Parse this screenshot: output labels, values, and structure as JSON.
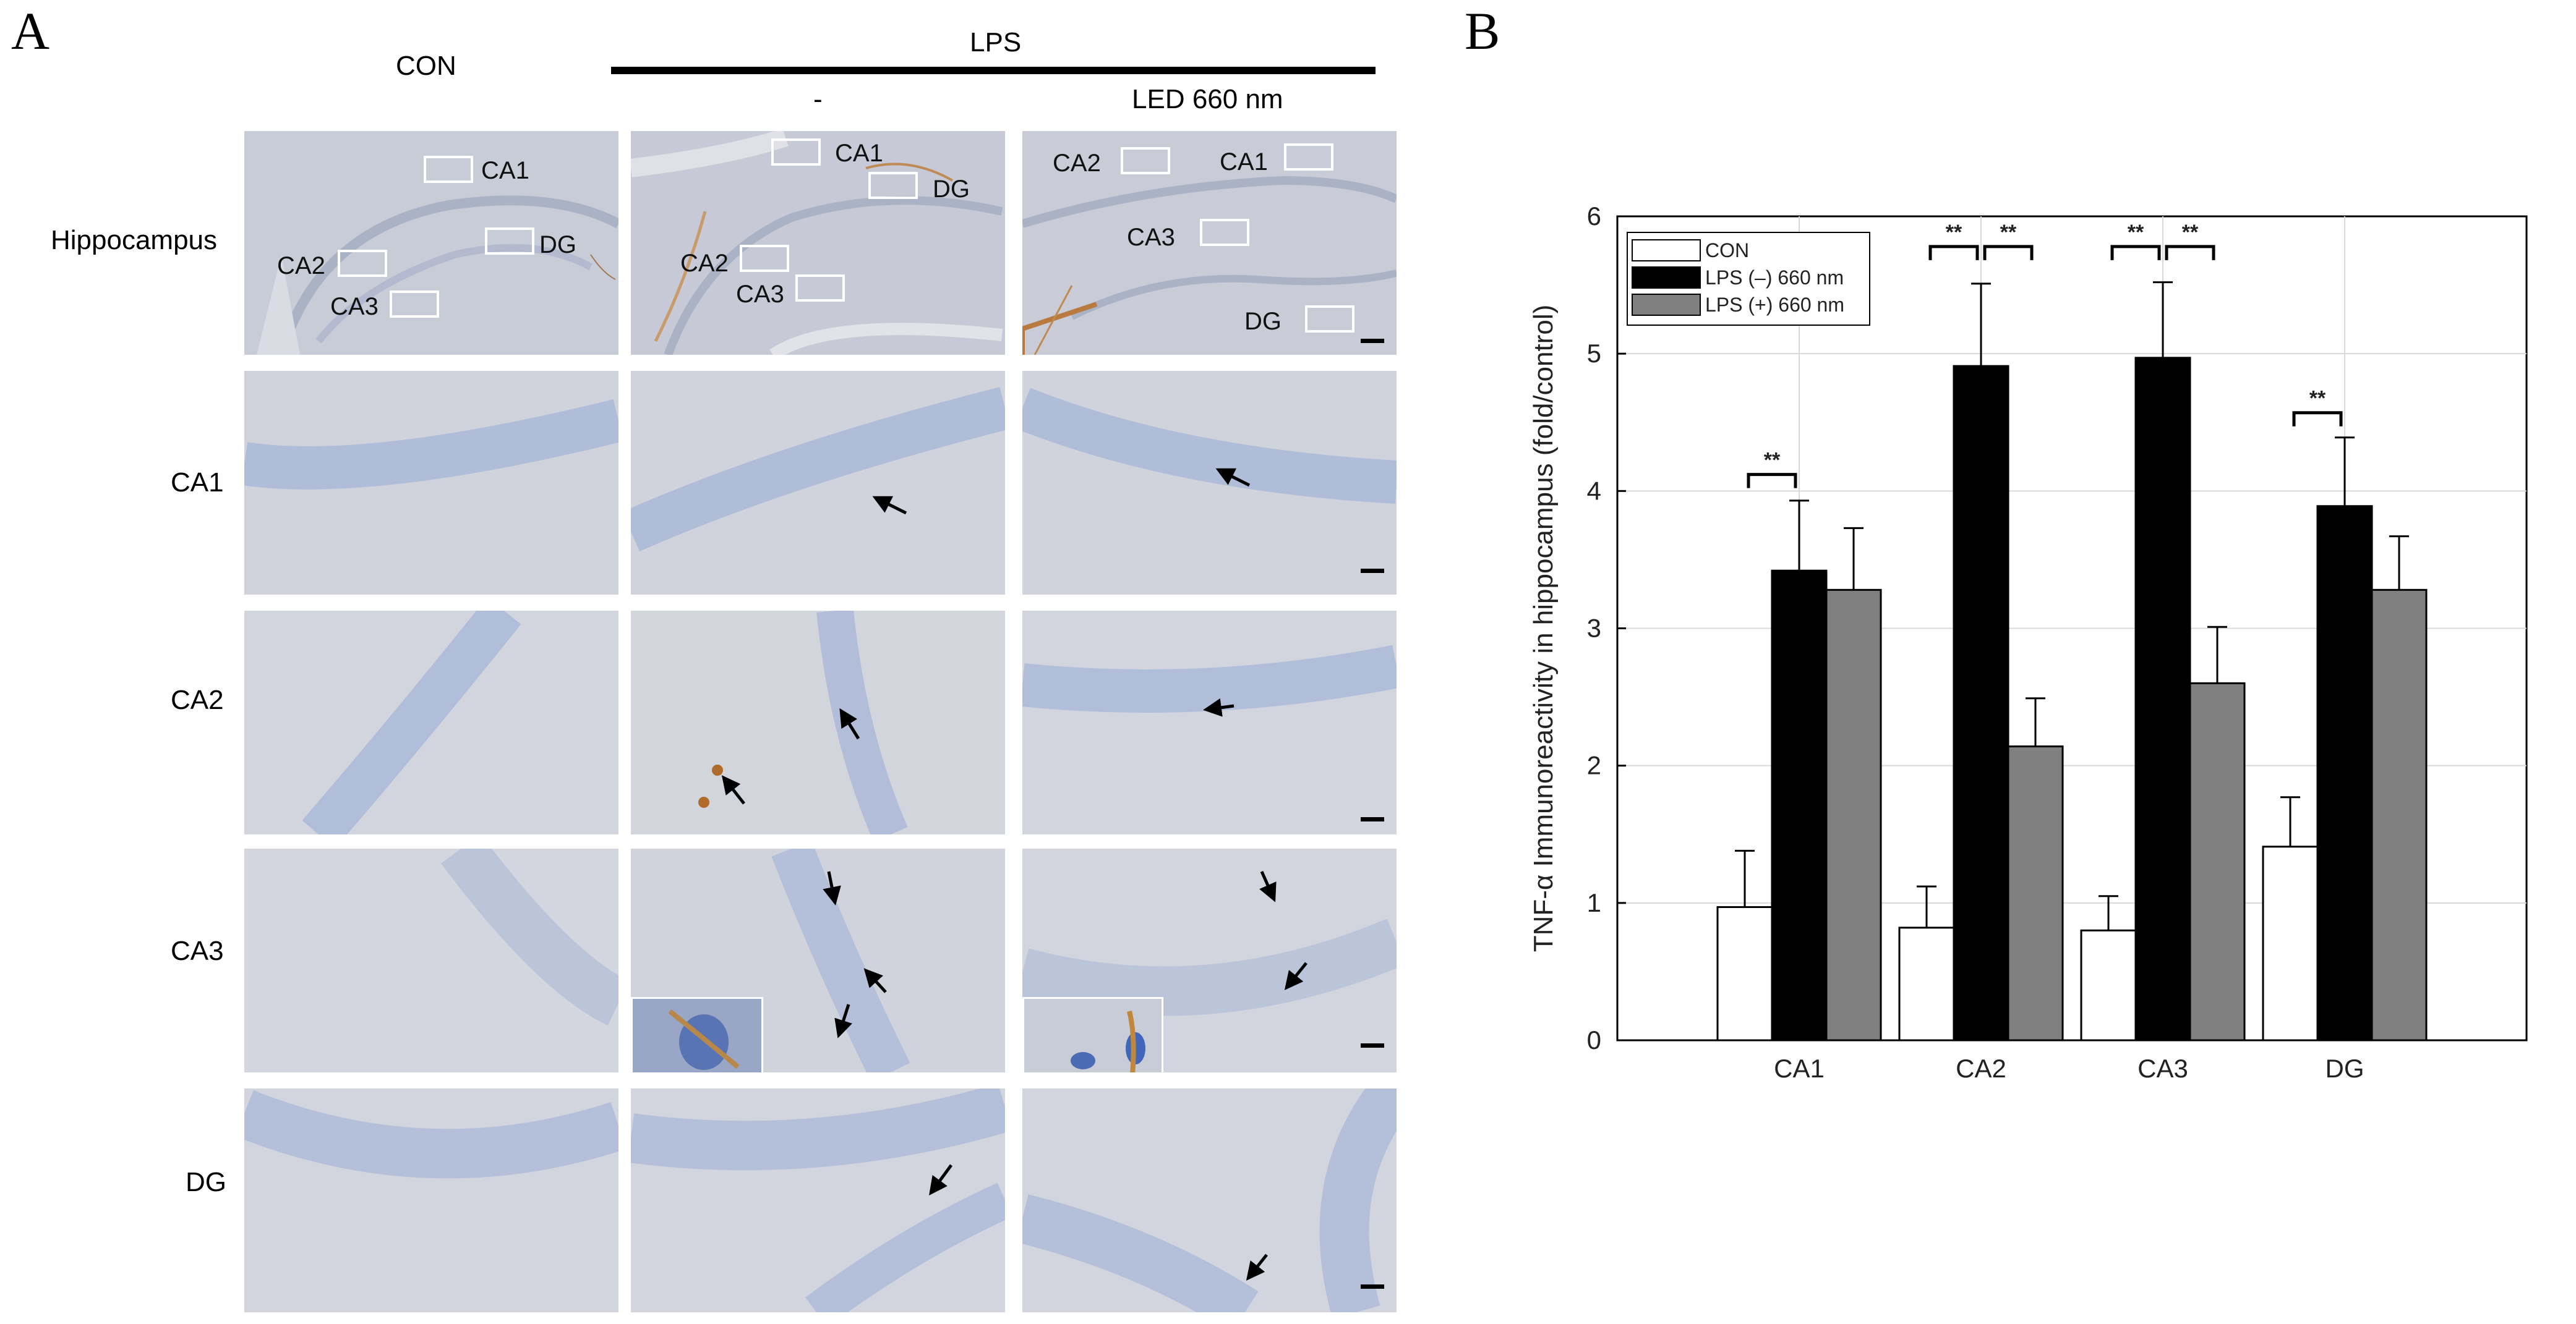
{
  "panel_a": {
    "letter": "A",
    "col_con": "CON",
    "col_lps": "LPS",
    "col_minus": "-",
    "col_led": "LED 660 nm",
    "rows": [
      "Hippocampus",
      "CA1",
      "CA2",
      "CA3",
      "DG"
    ],
    "region_labels": {
      "con": [
        "CA1",
        "DG",
        "CA2",
        "CA3"
      ],
      "lps": [
        "CA1",
        "DG",
        "CA2",
        "CA3"
      ],
      "led": [
        "CA2",
        "CA1",
        "CA3",
        "DG"
      ]
    }
  },
  "panel_b": {
    "letter": "B"
  },
  "chart_data": {
    "type": "bar",
    "ylabel": "TNF-α Immunoreactivity in hippocampus (fold/control)",
    "xlabel": "",
    "categories": [
      "CA1",
      "CA2",
      "CA3",
      "DG"
    ],
    "ylim": [
      0,
      6
    ],
    "yticks": [
      0,
      1,
      2,
      3,
      4,
      5,
      6
    ],
    "grid": true,
    "legend_position": "top-left",
    "series": [
      {
        "name": "CON",
        "color": "#ffffff",
        "values": [
          0.97,
          0.82,
          0.8,
          1.41
        ],
        "errors": [
          0.41,
          0.3,
          0.25,
          0.36
        ]
      },
      {
        "name": "LPS (–) 660 nm",
        "color": "#000000",
        "values": [
          3.42,
          4.91,
          4.97,
          3.89
        ],
        "errors": [
          0.51,
          0.6,
          0.55,
          0.5
        ]
      },
      {
        "name": "LPS (+) 660 nm",
        "color": "#808080",
        "values": [
          3.28,
          2.14,
          2.6,
          3.28
        ],
        "errors": [
          0.45,
          0.35,
          0.41,
          0.39
        ]
      }
    ],
    "significance": [
      {
        "category": "CA1",
        "pair": [
          0,
          1
        ],
        "label": "**",
        "y": 4.12
      },
      {
        "category": "CA2",
        "pair": [
          0,
          1
        ],
        "label": "**",
        "y": 5.78
      },
      {
        "category": "CA2",
        "pair": [
          1,
          2
        ],
        "label": "**",
        "y": 5.78
      },
      {
        "category": "CA3",
        "pair": [
          0,
          1
        ],
        "label": "**",
        "y": 5.78
      },
      {
        "category": "CA3",
        "pair": [
          1,
          2
        ],
        "label": "**",
        "y": 5.78
      },
      {
        "category": "DG",
        "pair": [
          0,
          1
        ],
        "label": "**",
        "y": 4.57
      }
    ]
  }
}
